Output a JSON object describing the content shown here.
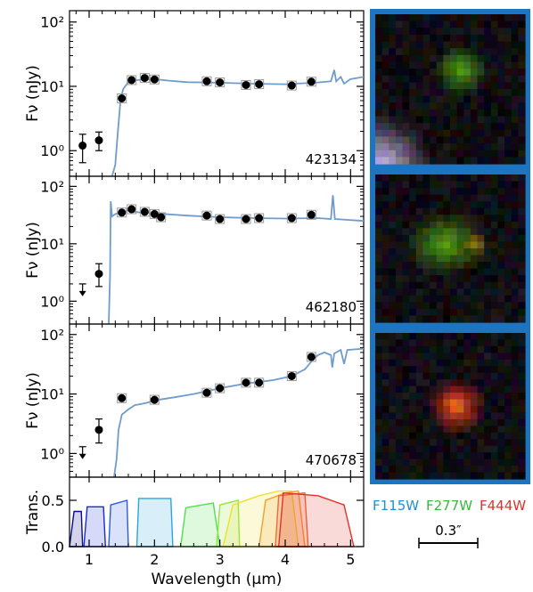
{
  "colors": {
    "model": "#6f9ccb",
    "cutout_border": "#1d75c2",
    "F115W": "#1e90d6",
    "F277W": "#37b83a",
    "F444W": "#e0322a"
  },
  "filters_legend": [
    "F115W",
    "F277W",
    "F444W"
  ],
  "scale_bar": {
    "label": "0.3″"
  },
  "axes": {
    "xlabel": "Wavelength (μm)",
    "ylabel": "Fν (nJy)",
    "trans_ylabel": "Trans.",
    "xlim": [
      0.7,
      5.2
    ],
    "ylim": [
      0.4,
      150
    ],
    "yscale": "log",
    "xticks": [
      1,
      2,
      3,
      4,
      5
    ],
    "yticks": [
      1,
      10,
      100
    ],
    "ytick_labels": [
      "10⁰",
      "10¹",
      "10²"
    ],
    "trans_ylim": [
      0,
      0.75
    ],
    "trans_yticks": [
      0.0,
      0.5
    ],
    "trans_ytick_labels": [
      "0.0",
      "0.5"
    ]
  },
  "chart_data": [
    {
      "type": "scatter",
      "id_label": "423134",
      "photometry": [
        {
          "x": 0.9,
          "y": 1.2,
          "err": [
            0.55,
            0.6
          ]
        },
        {
          "x": 1.15,
          "y": 1.45,
          "err": [
            0.45,
            0.5
          ]
        },
        {
          "x": 1.5,
          "y": 6.5
        },
        {
          "x": 1.65,
          "y": 12.5
        },
        {
          "x": 1.85,
          "y": 13.5
        },
        {
          "x": 2.0,
          "y": 12.8
        },
        {
          "x": 2.8,
          "y": 12.0
        },
        {
          "x": 3.0,
          "y": 11.5
        },
        {
          "x": 3.4,
          "y": 10.5
        },
        {
          "x": 3.6,
          "y": 10.8
        },
        {
          "x": 4.1,
          "y": 10.3
        },
        {
          "x": 4.4,
          "y": 11.8
        }
      ],
      "upper_limits": [],
      "model": [
        [
          1.35,
          0.4
        ],
        [
          1.4,
          0.6
        ],
        [
          1.44,
          2
        ],
        [
          1.48,
          6
        ],
        [
          1.52,
          9
        ],
        [
          1.55,
          10
        ],
        [
          1.6,
          11.5
        ],
        [
          1.7,
          12.5
        ],
        [
          2.0,
          13
        ],
        [
          2.2,
          12.3
        ],
        [
          2.5,
          11.6
        ],
        [
          3.0,
          11.4
        ],
        [
          3.5,
          11
        ],
        [
          4.0,
          10.8
        ],
        [
          4.5,
          11.5
        ],
        [
          4.7,
          12
        ],
        [
          4.75,
          18
        ],
        [
          4.78,
          12
        ],
        [
          4.85,
          14
        ],
        [
          4.9,
          11
        ],
        [
          5.0,
          13
        ],
        [
          5.2,
          14
        ]
      ]
    },
    {
      "type": "scatter",
      "id_label": "462180",
      "photometry": [
        {
          "x": 1.15,
          "y": 3.0,
          "err": [
            1.2,
            1.5
          ]
        },
        {
          "x": 1.5,
          "y": 35
        },
        {
          "x": 1.65,
          "y": 40
        },
        {
          "x": 1.85,
          "y": 36
        },
        {
          "x": 2.0,
          "y": 33
        },
        {
          "x": 2.1,
          "y": 29
        },
        {
          "x": 2.8,
          "y": 31
        },
        {
          "x": 3.0,
          "y": 27
        },
        {
          "x": 3.4,
          "y": 27
        },
        {
          "x": 3.6,
          "y": 28
        },
        {
          "x": 4.1,
          "y": 28
        },
        {
          "x": 4.4,
          "y": 32
        }
      ],
      "upper_limits": [
        {
          "x": 0.9,
          "y": 2.0
        }
      ],
      "model": [
        [
          1.3,
          0.4
        ],
        [
          1.32,
          3
        ],
        [
          1.33,
          55
        ],
        [
          1.35,
          30
        ],
        [
          1.4,
          33
        ],
        [
          1.5,
          36
        ],
        [
          1.6,
          38
        ],
        [
          1.7,
          36
        ],
        [
          1.8,
          35
        ],
        [
          2.0,
          34
        ],
        [
          2.5,
          31
        ],
        [
          3.0,
          29
        ],
        [
          3.5,
          28
        ],
        [
          4.0,
          27.5
        ],
        [
          4.5,
          28
        ],
        [
          4.7,
          27
        ],
        [
          4.73,
          70
        ],
        [
          4.76,
          27
        ],
        [
          5.2,
          25
        ]
      ]
    },
    {
      "type": "scatter",
      "id_label": "470678",
      "photometry": [
        {
          "x": 1.15,
          "y": 2.5,
          "err": [
            1.0,
            1.3
          ]
        },
        {
          "x": 1.5,
          "y": 8.5
        },
        {
          "x": 2.0,
          "y": 8.0
        },
        {
          "x": 2.8,
          "y": 10.5
        },
        {
          "x": 3.0,
          "y": 12.5
        },
        {
          "x": 3.4,
          "y": 15.5
        },
        {
          "x": 3.6,
          "y": 15.5
        },
        {
          "x": 4.1,
          "y": 20
        },
        {
          "x": 4.4,
          "y": 42
        }
      ],
      "upper_limits": [
        {
          "x": 0.9,
          "y": 1.3
        }
      ],
      "model": [
        [
          1.38,
          0.4
        ],
        [
          1.42,
          0.8
        ],
        [
          1.45,
          2.5
        ],
        [
          1.5,
          4.5
        ],
        [
          1.6,
          5.5
        ],
        [
          1.7,
          6.5
        ],
        [
          1.8,
          6.8
        ],
        [
          1.9,
          7.2
        ],
        [
          2.0,
          7.8
        ],
        [
          2.3,
          8.8
        ],
        [
          2.6,
          10
        ],
        [
          3.0,
          12.5
        ],
        [
          3.4,
          15
        ],
        [
          3.8,
          17
        ],
        [
          4.1,
          20
        ],
        [
          4.3,
          26
        ],
        [
          4.4,
          35
        ],
        [
          4.5,
          45
        ],
        [
          4.6,
          50
        ],
        [
          4.7,
          45
        ],
        [
          4.72,
          28
        ],
        [
          4.75,
          48
        ],
        [
          4.85,
          55
        ],
        [
          4.9,
          32
        ],
        [
          4.95,
          55
        ],
        [
          5.2,
          58
        ]
      ]
    },
    {
      "type": "area",
      "name_hidden": "filter transmission curves",
      "filters": [
        {
          "c": "#0a0f8a",
          "pts": [
            [
              0.7,
              0
            ],
            [
              0.77,
              0.38
            ],
            [
              0.88,
              0.38
            ],
            [
              0.9,
              0
            ]
          ]
        },
        {
          "c": "#1a2ad6",
          "pts": [
            [
              0.92,
              0
            ],
            [
              0.97,
              0.43
            ],
            [
              1.22,
              0.43
            ],
            [
              1.25,
              0
            ]
          ]
        },
        {
          "c": "#2a5ce0",
          "pts": [
            [
              1.3,
              0
            ],
            [
              1.33,
              0.45
            ],
            [
              1.58,
              0.5
            ],
            [
              1.6,
              0
            ]
          ]
        },
        {
          "c": "#29a6e0",
          "pts": [
            [
              1.73,
              0
            ],
            [
              1.76,
              0.52
            ],
            [
              2.25,
              0.52
            ],
            [
              2.28,
              0
            ]
          ]
        },
        {
          "c": "#4fe04f",
          "pts": [
            [
              2.4,
              0
            ],
            [
              2.48,
              0.42
            ],
            [
              2.9,
              0.47
            ],
            [
              3.0,
              0
            ]
          ]
        },
        {
          "c": "#8ce83a",
          "pts": [
            [
              2.95,
              0
            ],
            [
              3.0,
              0.45
            ],
            [
              3.28,
              0.5
            ],
            [
              3.3,
              0
            ]
          ]
        },
        {
          "c": "#f0e02a",
          "pts": [
            [
              3.05,
              0
            ],
            [
              3.2,
              0.45
            ],
            [
              3.6,
              0.55
            ],
            [
              3.9,
              0.6
            ],
            [
              4.1,
              0.6
            ],
            [
              4.2,
              0
            ]
          ]
        },
        {
          "c": "#f0a030",
          "pts": [
            [
              3.6,
              0
            ],
            [
              3.7,
              0.5
            ],
            [
              4.0,
              0.58
            ],
            [
              4.2,
              0.6
            ],
            [
              4.3,
              0
            ]
          ]
        },
        {
          "c": "#f06a3a",
          "pts": [
            [
              3.85,
              0
            ],
            [
              3.9,
              0.55
            ],
            [
              4.3,
              0.58
            ],
            [
              4.35,
              0
            ]
          ]
        },
        {
          "c": "#e6302a",
          "pts": [
            [
              3.9,
              0
            ],
            [
              3.97,
              0.58
            ],
            [
              4.5,
              0.55
            ],
            [
              4.9,
              0.45
            ],
            [
              5.05,
              0
            ]
          ]
        }
      ]
    }
  ]
}
